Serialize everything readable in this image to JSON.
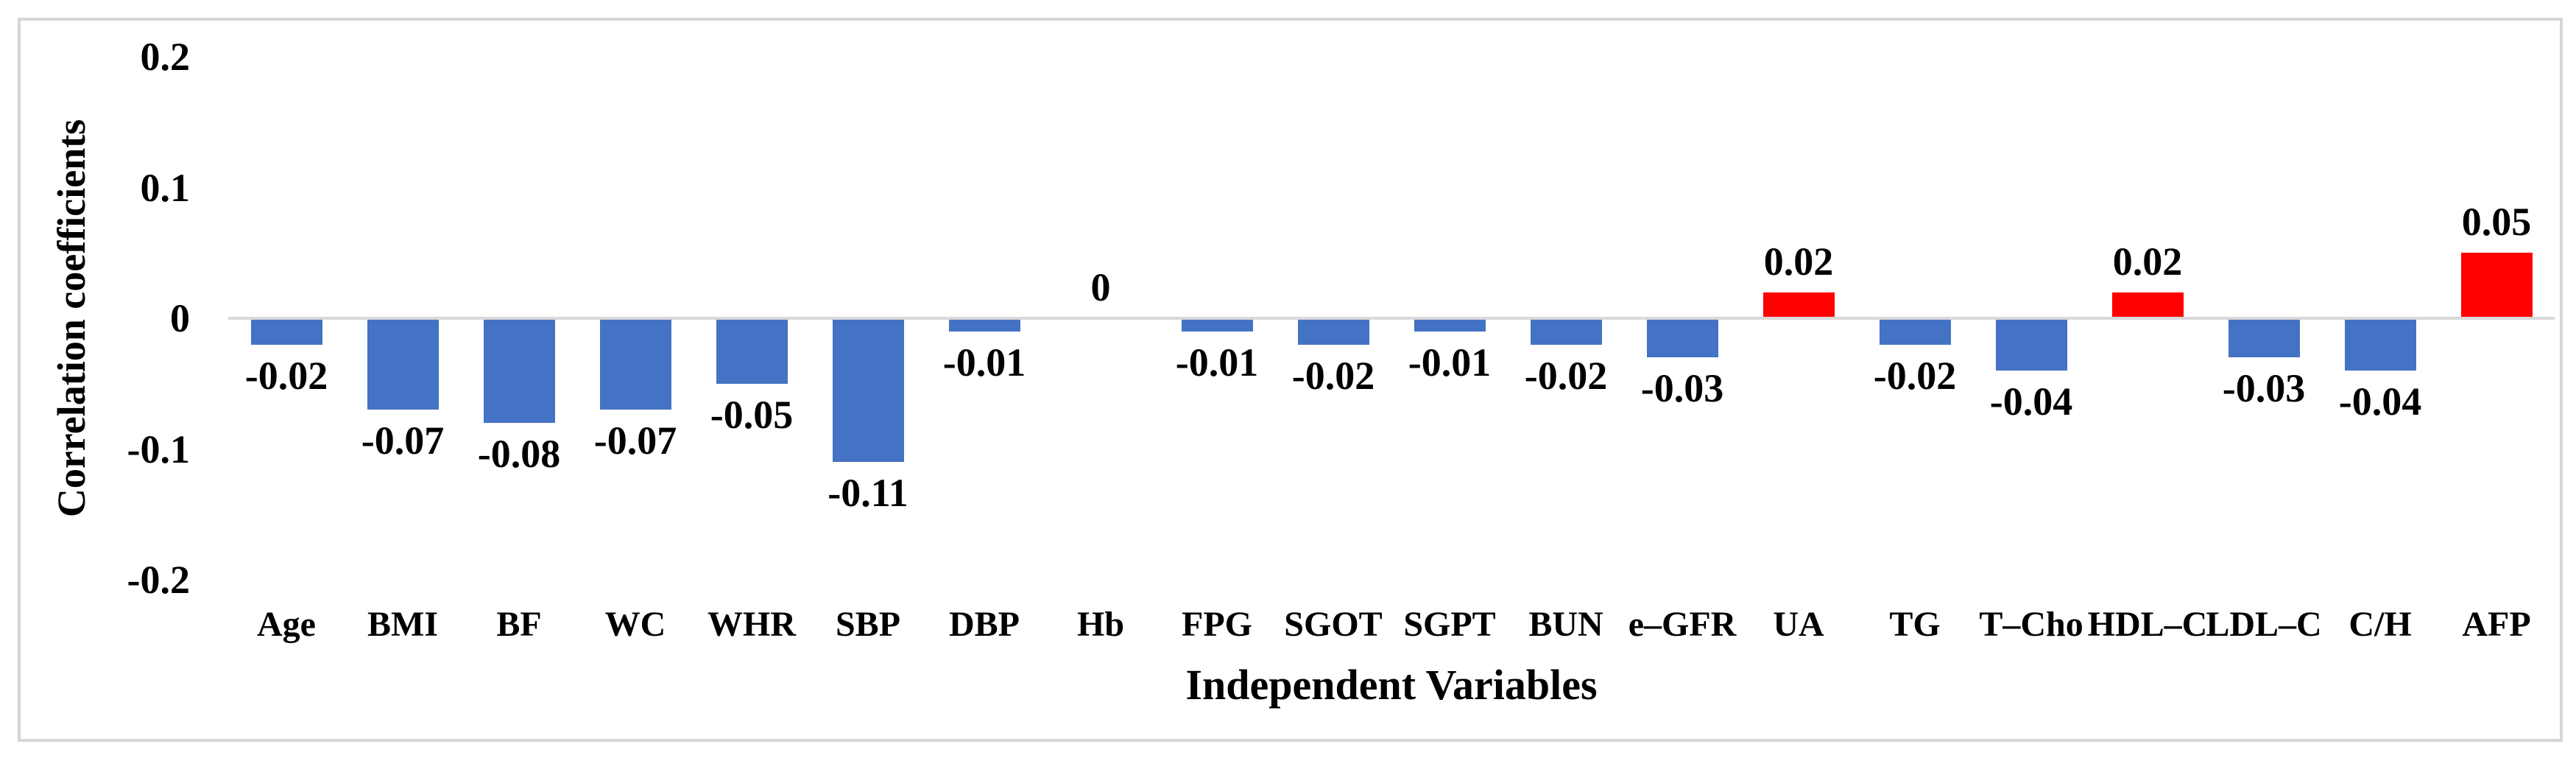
{
  "figure": {
    "background_color": "#FFFFFF",
    "border_color": "#D6D6D6"
  },
  "chart_data": {
    "type": "bar",
    "title": "",
    "xlabel": "Independent Variables",
    "ylabel": "Correlation coefficients",
    "categories": [
      "Age",
      "BMI",
      "BF",
      "WC",
      "WHR",
      "SBP",
      "DBP",
      "Hb",
      "FPG",
      "SGOT",
      "SGPT",
      "BUN",
      "e–GFR",
      "UA",
      "TG",
      "T–Cho",
      "HDL–C",
      "LDL–C",
      "C/H",
      "AFP"
    ],
    "values": [
      -0.02,
      -0.07,
      -0.08,
      -0.07,
      -0.05,
      -0.11,
      -0.01,
      0,
      -0.01,
      -0.02,
      -0.01,
      -0.02,
      -0.03,
      0.02,
      -0.02,
      -0.04,
      0.02,
      -0.03,
      -0.04,
      0.05
    ],
    "value_labels": [
      "-0.02",
      "-0.07",
      "-0.08",
      "-0.07",
      "-0.05",
      "-0.11",
      "-0.01",
      "0",
      "-0.01",
      "-0.02",
      "-0.01",
      "-0.02",
      "-0.03",
      "0.02",
      "-0.02",
      "-0.04",
      "0.02",
      "-0.03",
      "-0.04",
      "0.05"
    ],
    "y_ticks": [
      "0.2",
      "0.1",
      "0",
      "-0.1",
      "-0.2"
    ],
    "y_tick_values": [
      0.2,
      0.1,
      0,
      -0.1,
      -0.2
    ],
    "ylim": [
      -0.2,
      0.2
    ],
    "grid": false,
    "legend": "none",
    "negative_color": "#4472C4",
    "positive_color": "#FF0000",
    "axis_line_color": "#D9D9D9"
  }
}
